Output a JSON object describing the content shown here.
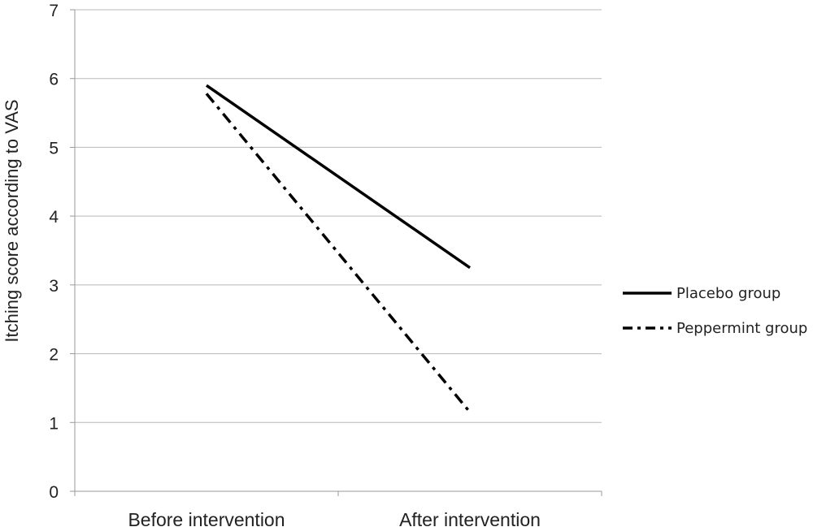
{
  "chart_data": {
    "type": "line",
    "categories": [
      "Before intervention",
      "After intervention"
    ],
    "series": [
      {
        "name": "Placebo group",
        "values": [
          5.9,
          3.25
        ],
        "color": "#000000",
        "dash": "solid"
      },
      {
        "name": "Peppermint group",
        "values": [
          5.78,
          1.15
        ],
        "color": "#000000",
        "dash": "dash-dot"
      }
    ],
    "title": "",
    "xlabel": "",
    "ylabel": "Itching score according to VAS",
    "ylim": [
      0,
      7
    ],
    "yticks": [
      "0",
      "1",
      "2",
      "3",
      "4",
      "5",
      "6",
      "7"
    ],
    "grid": true,
    "legend_position": "right"
  }
}
